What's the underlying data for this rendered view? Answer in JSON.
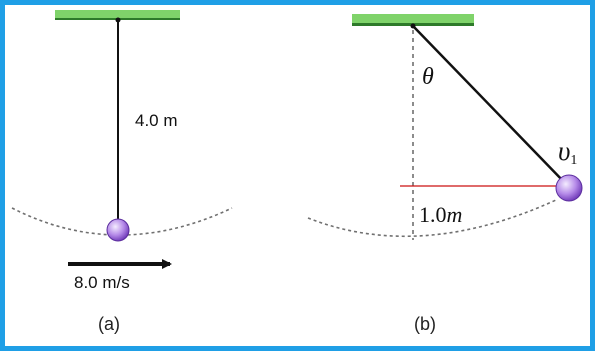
{
  "colors": {
    "frame": "#1f9fe6",
    "ceiling": "#7fd36a",
    "ceiling_dark": "#2e7a2a",
    "string": "#111111",
    "arc": "#707070",
    "bob_light": "#e2caff",
    "bob_dark": "#8a4fd1",
    "reference_line": "#cc1111",
    "arrow": "#111111"
  },
  "panel_a": {
    "length_label": "4.0 m",
    "speed_label": "8.0 m/s",
    "caption": "(a)"
  },
  "panel_b": {
    "angle_symbol": "θ",
    "velocity_symbol": "υ",
    "velocity_subscript": "1",
    "height_value": "1.0",
    "height_unit": "m",
    "caption": "(b)"
  }
}
